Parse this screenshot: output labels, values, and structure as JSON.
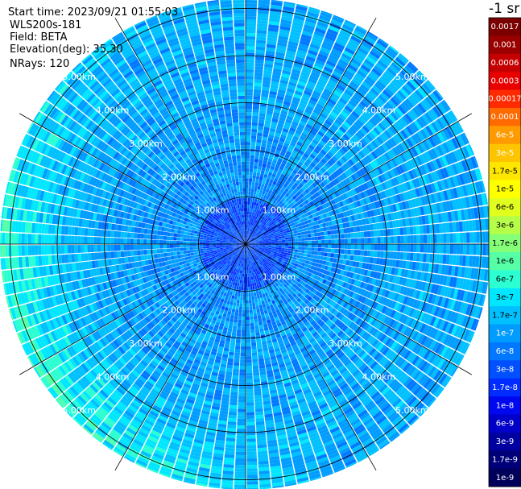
{
  "header": {
    "start_time": "Start time: 2023/09/21 01:55:03",
    "instrument": "WLS200s-181",
    "field": "Field: BETA",
    "elevation": "Elevation(deg): 35.30",
    "nrays": "NRays: 120"
  },
  "colorbar": {
    "unit": "-1 sr",
    "labels": [
      "0.0017",
      "0.001",
      "0.0006",
      "0.0003",
      "0.00017",
      "0.0001",
      "6e-5",
      "3e-5",
      "1.7e-5",
      "1e-5",
      "6e-6",
      "3e-6",
      "1.7e-6",
      "1e-6",
      "6e-7",
      "3e-7",
      "1.7e-7",
      "1e-7",
      "6e-8",
      "3e-8",
      "1.7e-8",
      "1e-8",
      "6e-9",
      "3e-9",
      "1.7e-9",
      "1e-9"
    ],
    "colors": [
      "#7a0000",
      "#9a0000",
      "#c40000",
      "#e80000",
      "#ff2a00",
      "#ff6a00",
      "#ff9a00",
      "#ffc400",
      "#ffe600",
      "#ffff00",
      "#e0ff1e",
      "#b6ff48",
      "#86ff78",
      "#56ffa6",
      "#2cffd2",
      "#00e6ff",
      "#00c0ff",
      "#009cff",
      "#0078ff",
      "#0050ff",
      "#002cff",
      "#0008f0",
      "#0000c8",
      "#0000a0",
      "#000078",
      "#00005a"
    ]
  },
  "chart_data": {
    "type": "heatmap",
    "projection": "polar (PPI scan)",
    "quantity": "BETA",
    "nrays": 120,
    "range_rings_km": [
      1,
      2,
      3,
      4,
      5
    ],
    "ring_labels": [
      "1.00km",
      "2.00km",
      "3.00km",
      "4.00km",
      "5.00km"
    ],
    "max_range_km": 5.2,
    "azimuth_gridlines_deg": [
      0,
      30,
      60,
      90,
      120,
      150,
      180,
      210,
      240,
      270,
      300,
      330
    ],
    "typical_value_range": [
      "1e-7",
      "3e-6"
    ],
    "notes": "Mostly 1e-7 to 6e-7 (cyan/light blue); higher values (1e-6 to 3e-6, green) toward the west and southwest at 4-5 km; lower values (3e-8 to 6e-8, blue) within 1 km."
  }
}
